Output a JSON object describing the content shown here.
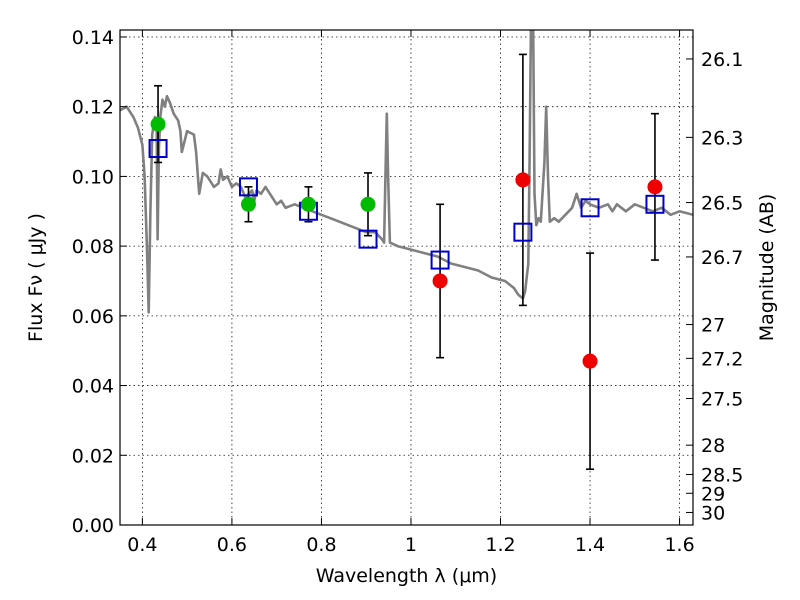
{
  "chart_data": {
    "type": "scatter",
    "xlabel": "Wavelength  λ (μm)",
    "ylabel": "Flux  Fν ( μJy )",
    "ylabel_right": "Magnitude (AB)",
    "xlim": [
      0.35,
      1.63
    ],
    "ylim": [
      0.0,
      0.142
    ],
    "grid": true,
    "x_ticks": [
      {
        "value": 0.4,
        "label": "0.4"
      },
      {
        "value": 0.6,
        "label": "0.6"
      },
      {
        "value": 0.8,
        "label": "0.8"
      },
      {
        "value": 1.0,
        "label": "1"
      },
      {
        "value": 1.2,
        "label": "1.2"
      },
      {
        "value": 1.4,
        "label": "1.4"
      },
      {
        "value": 1.6,
        "label": "1.6"
      }
    ],
    "y_ticks": [
      {
        "value": 0.0,
        "label": "0.00"
      },
      {
        "value": 0.02,
        "label": "0.02"
      },
      {
        "value": 0.04,
        "label": "0.04"
      },
      {
        "value": 0.06,
        "label": "0.06"
      },
      {
        "value": 0.08,
        "label": "0.08"
      },
      {
        "value": 0.1,
        "label": "0.10"
      },
      {
        "value": 0.12,
        "label": "0.12"
      },
      {
        "value": 0.14,
        "label": "0.14"
      }
    ],
    "right_ticks": [
      {
        "flux": 0.1337,
        "label": "26.1"
      },
      {
        "flux": 0.1112,
        "label": "26.3"
      },
      {
        "flux": 0.0925,
        "label": "26.5"
      },
      {
        "flux": 0.0769,
        "label": "26.7"
      },
      {
        "flux": 0.0575,
        "label": "27"
      },
      {
        "flux": 0.0478,
        "label": "27.2"
      },
      {
        "flux": 0.0363,
        "label": "27.5"
      },
      {
        "flux": 0.0229,
        "label": "28"
      },
      {
        "flux": 0.0145,
        "label": "28.5"
      },
      {
        "flux": 0.0091,
        "label": "29"
      },
      {
        "flux": 0.0036,
        "label": "30"
      }
    ],
    "series": [
      {
        "kind": "model_spectrum",
        "color": "#808080",
        "points": [
          [
            0.35,
            0.119
          ],
          [
            0.365,
            0.12
          ],
          [
            0.38,
            0.117
          ],
          [
            0.39,
            0.114
          ],
          [
            0.4,
            0.109
          ],
          [
            0.405,
            0.1
          ],
          [
            0.41,
            0.08
          ],
          [
            0.414,
            0.061
          ],
          [
            0.418,
            0.09
          ],
          [
            0.422,
            0.112
          ],
          [
            0.428,
            0.117
          ],
          [
            0.432,
            0.113
          ],
          [
            0.434,
            0.082
          ],
          [
            0.437,
            0.108
          ],
          [
            0.44,
            0.117
          ],
          [
            0.445,
            0.122
          ],
          [
            0.45,
            0.12
          ],
          [
            0.455,
            0.123
          ],
          [
            0.462,
            0.121
          ],
          [
            0.47,
            0.118
          ],
          [
            0.48,
            0.116
          ],
          [
            0.485,
            0.113
          ],
          [
            0.488,
            0.107
          ],
          [
            0.492,
            0.109
          ],
          [
            0.5,
            0.113
          ],
          [
            0.515,
            0.112
          ],
          [
            0.52,
            0.107
          ],
          [
            0.527,
            0.095
          ],
          [
            0.535,
            0.101
          ],
          [
            0.545,
            0.1
          ],
          [
            0.56,
            0.097
          ],
          [
            0.57,
            0.098
          ],
          [
            0.575,
            0.102
          ],
          [
            0.58,
            0.099
          ],
          [
            0.59,
            0.1
          ],
          [
            0.6,
            0.097
          ],
          [
            0.61,
            0.098
          ],
          [
            0.62,
            0.097
          ],
          [
            0.63,
            0.094
          ],
          [
            0.645,
            0.096
          ],
          [
            0.65,
            0.093
          ],
          [
            0.655,
            0.096
          ],
          [
            0.665,
            0.095
          ],
          [
            0.675,
            0.097
          ],
          [
            0.69,
            0.094
          ],
          [
            0.7,
            0.092
          ],
          [
            0.71,
            0.093
          ],
          [
            0.72,
            0.091
          ],
          [
            0.74,
            0.092
          ],
          [
            0.76,
            0.091
          ],
          [
            0.78,
            0.09
          ],
          [
            0.8,
            0.089
          ],
          [
            0.82,
            0.088
          ],
          [
            0.84,
            0.087
          ],
          [
            0.86,
            0.086
          ],
          [
            0.88,
            0.085
          ],
          [
            0.9,
            0.084
          ],
          [
            0.92,
            0.084
          ],
          [
            0.935,
            0.082
          ],
          [
            0.94,
            0.081
          ],
          [
            0.943,
            0.101
          ],
          [
            0.946,
            0.118
          ],
          [
            0.949,
            0.1
          ],
          [
            0.953,
            0.081
          ],
          [
            0.97,
            0.08
          ],
          [
            1.0,
            0.079
          ],
          [
            1.03,
            0.078
          ],
          [
            1.06,
            0.077
          ],
          [
            1.09,
            0.075
          ],
          [
            1.12,
            0.074
          ],
          [
            1.15,
            0.073
          ],
          [
            1.18,
            0.071
          ],
          [
            1.21,
            0.07
          ],
          [
            1.23,
            0.068
          ],
          [
            1.24,
            0.066
          ],
          [
            1.25,
            0.065
          ],
          [
            1.255,
            0.067
          ],
          [
            1.262,
            0.075
          ],
          [
            1.265,
            0.105
          ],
          [
            1.268,
            0.142
          ],
          [
            1.273,
            0.142
          ],
          [
            1.276,
            0.095
          ],
          [
            1.28,
            0.086
          ],
          [
            1.285,
            0.088
          ],
          [
            1.29,
            0.087
          ],
          [
            1.298,
            0.104
          ],
          [
            1.302,
            0.12
          ],
          [
            1.306,
            0.1
          ],
          [
            1.31,
            0.087
          ],
          [
            1.32,
            0.088
          ],
          [
            1.33,
            0.087
          ],
          [
            1.345,
            0.089
          ],
          [
            1.36,
            0.091
          ],
          [
            1.37,
            0.095
          ],
          [
            1.38,
            0.091
          ],
          [
            1.39,
            0.093
          ],
          [
            1.4,
            0.092
          ],
          [
            1.42,
            0.091
          ],
          [
            1.44,
            0.092
          ],
          [
            1.45,
            0.09
          ],
          [
            1.46,
            0.092
          ],
          [
            1.48,
            0.09
          ],
          [
            1.5,
            0.092
          ],
          [
            1.52,
            0.091
          ],
          [
            1.54,
            0.09
          ],
          [
            1.56,
            0.091
          ],
          [
            1.58,
            0.089
          ],
          [
            1.6,
            0.09
          ],
          [
            1.63,
            0.089
          ]
        ]
      },
      {
        "kind": "model_photometry",
        "marker": "open-square",
        "color": "#0000cc",
        "points": [
          [
            0.435,
            0.108
          ],
          [
            0.637,
            0.097
          ],
          [
            0.771,
            0.09
          ],
          [
            0.904,
            0.082
          ],
          [
            1.065,
            0.076
          ],
          [
            1.25,
            0.084
          ],
          [
            1.4,
            0.091
          ],
          [
            1.545,
            0.092
          ]
        ]
      },
      {
        "kind": "detections",
        "marker": "filled-circle",
        "color": "#00bb00",
        "points": [
          {
            "x": 0.435,
            "y": 0.115,
            "err": 0.011
          },
          {
            "x": 0.637,
            "y": 0.092,
            "err": 0.005
          },
          {
            "x": 0.771,
            "y": 0.092,
            "err": 0.005
          },
          {
            "x": 0.904,
            "y": 0.092,
            "err": 0.009
          }
        ]
      },
      {
        "kind": "low_significance",
        "marker": "filled-circle",
        "color": "#ee0000",
        "points": [
          {
            "x": 1.065,
            "y": 0.07,
            "err": 0.022
          },
          {
            "x": 1.25,
            "y": 0.099,
            "err": 0.036
          },
          {
            "x": 1.4,
            "y": 0.047,
            "err": 0.031
          },
          {
            "x": 1.545,
            "y": 0.097,
            "err": 0.021
          }
        ]
      }
    ]
  }
}
